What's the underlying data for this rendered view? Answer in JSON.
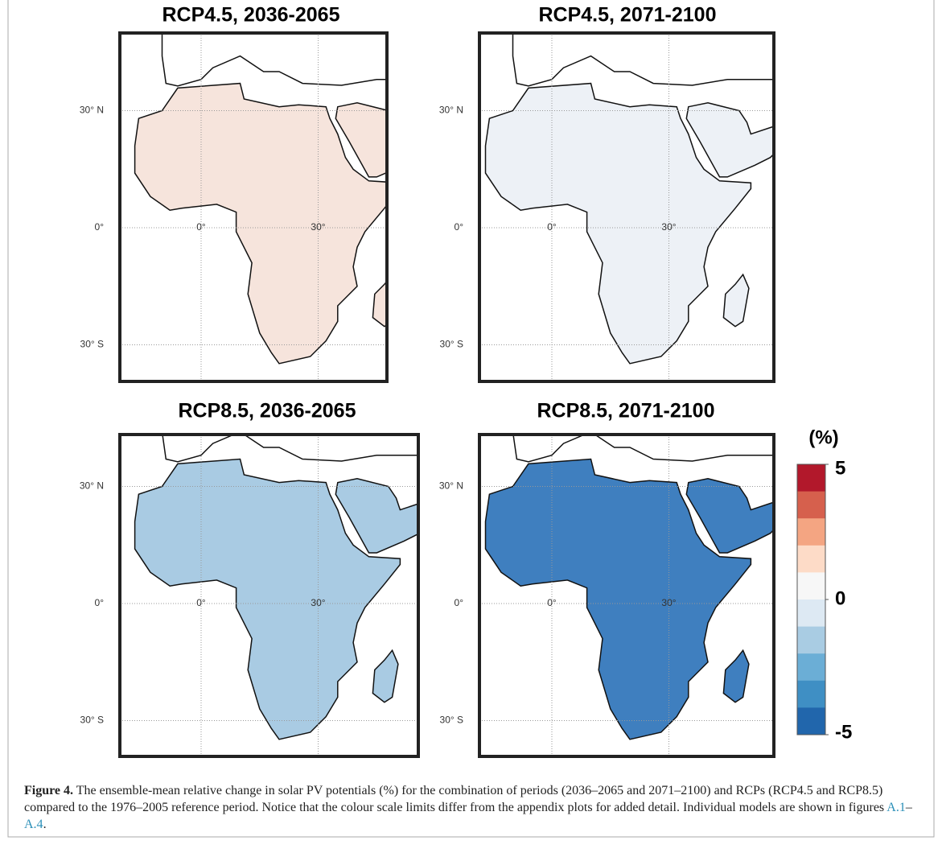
{
  "figure": {
    "panels": [
      {
        "title": "RCP4.5, 2036-2065",
        "color": "#f6e4dc"
      },
      {
        "title": "RCP4.5, 2071-2100",
        "color": "#edf1f6"
      },
      {
        "title": "RCP8.5, 2036-2065",
        "color": "#a9cbe3"
      },
      {
        "title": "RCP8.5, 2071-2100",
        "color": "#3f7fbf"
      }
    ],
    "lat_ticks": [
      {
        "value": 30,
        "label": "30° N"
      },
      {
        "value": 0,
        "label": "0°"
      },
      {
        "value": -30,
        "label": "30° S"
      }
    ],
    "lon_ticks": [
      {
        "value": 0,
        "label": "0°"
      },
      {
        "value": 30,
        "label": "30°"
      }
    ],
    "colorbar": {
      "label": "(%)",
      "lim": [
        -5,
        5
      ],
      "ticks": [
        5,
        0,
        -5
      ],
      "colors": [
        "#b2182b",
        "#d6604d",
        "#f4a582",
        "#fddbc7",
        "#f7f7f7",
        "#dde9f3",
        "#a9cce3",
        "#6baed6",
        "#3f8fc4",
        "#2166ac"
      ]
    },
    "caption": {
      "label": "Figure 4.",
      "text": " The ensemble-mean relative change in solar PV potentials (%) for the combination of periods (2036–2065 and 2071–2100) and RCPs (RCP4.5 and RCP8.5) compared to the 1976–2005 reference period. Notice that the colour scale limits differ from the appendix plots for added detail. Individual models are shown in figures ",
      "link1": "A.1",
      "sep": "–",
      "link2": "A.4",
      "end": "."
    }
  }
}
